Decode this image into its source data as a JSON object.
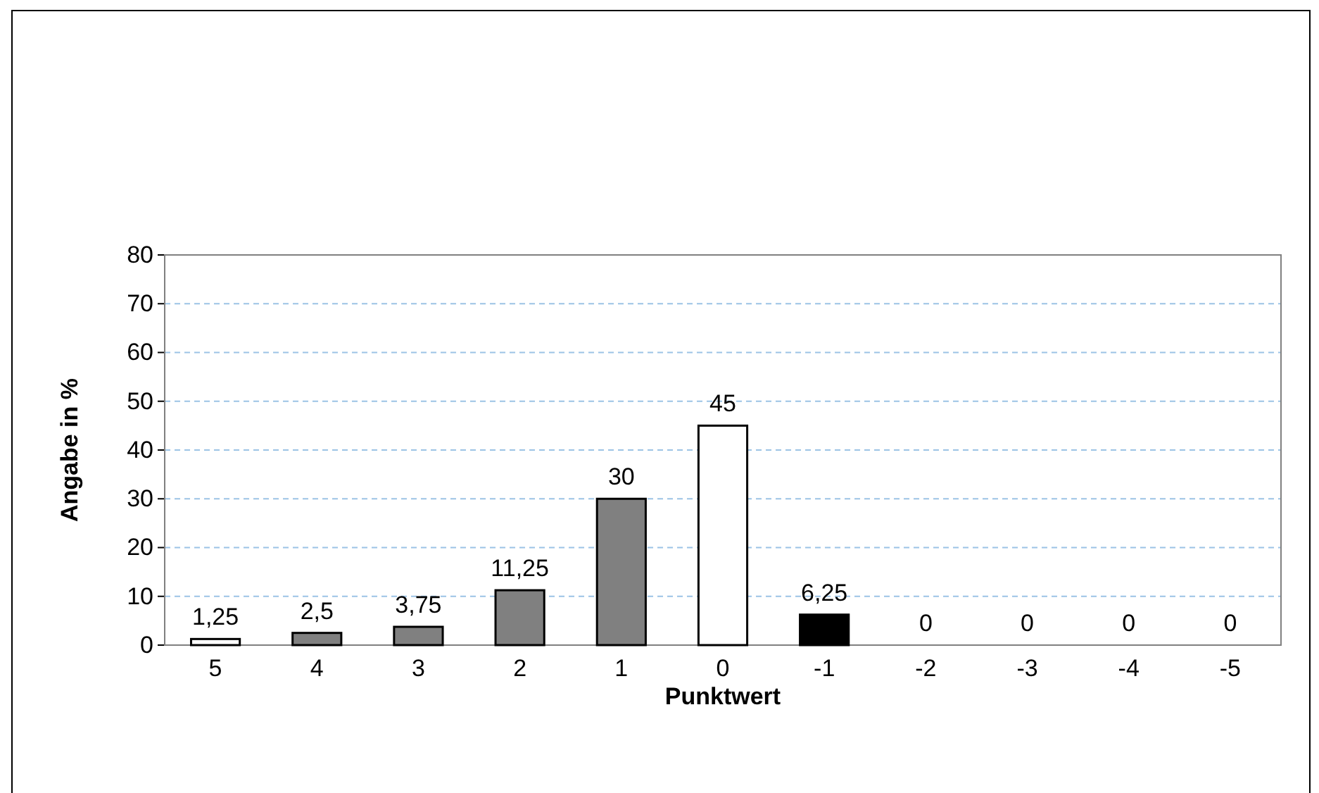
{
  "chart_data": {
    "type": "bar",
    "xlabel": "Punktwert",
    "ylabel": "Angabe in %",
    "categories": [
      "5",
      "4",
      "3",
      "2",
      "1",
      "0",
      "-1",
      "-2",
      "-3",
      "-4",
      "-5"
    ],
    "values": [
      1.25,
      2.5,
      3.75,
      11.25,
      30,
      45,
      6.25,
      0,
      0,
      0,
      0
    ],
    "colors": [
      "#ffffff",
      "#808080",
      "#808080",
      "#808080",
      "#808080",
      "#ffffff",
      "#000000",
      "#808080",
      "#808080",
      "#808080",
      "#808080"
    ],
    "value_labels": [
      "1,25",
      "2,5",
      "3,75",
      "11,25",
      "30",
      "45",
      "6,25",
      "0",
      "0",
      "0",
      "0"
    ],
    "ylim": [
      0,
      80
    ],
    "yticks": [
      0,
      10,
      20,
      30,
      40,
      50,
      60,
      70,
      80
    ],
    "grid": "y"
  }
}
